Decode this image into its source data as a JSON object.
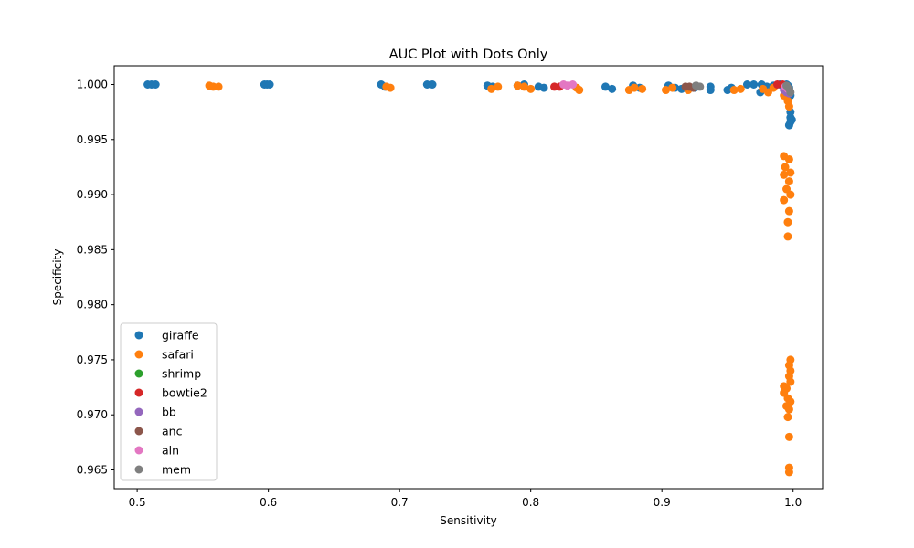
{
  "chart_data": {
    "type": "scatter",
    "title": "AUC Plot with Dots Only",
    "xlabel": "Sensitivity",
    "ylabel": "Specificity",
    "xlim": [
      0.4825,
      1.0225
    ],
    "ylim": [
      0.9633,
      1.0017
    ],
    "x_ticks": [
      "0.5",
      "0.6",
      "0.7",
      "0.8",
      "0.9",
      "1.0"
    ],
    "y_ticks": [
      "0.965",
      "0.970",
      "0.975",
      "0.980",
      "0.985",
      "0.990",
      "0.995",
      "1.000"
    ],
    "legend_position": "lower-left",
    "series": [
      {
        "name": "giraffe",
        "color": "#1f77b4",
        "points": [
          [
            0.508,
            1.0
          ],
          [
            0.511,
            1.0
          ],
          [
            0.514,
            1.0
          ],
          [
            0.597,
            1.0
          ],
          [
            0.599,
            1.0
          ],
          [
            0.601,
            1.0
          ],
          [
            0.686,
            1.0
          ],
          [
            0.689,
            0.9998
          ],
          [
            0.721,
            1.0
          ],
          [
            0.725,
            1.0
          ],
          [
            0.767,
            0.9999
          ],
          [
            0.771,
            0.9998
          ],
          [
            0.79,
            0.9999
          ],
          [
            0.795,
            1.0
          ],
          [
            0.806,
            0.9998
          ],
          [
            0.81,
            0.9997
          ],
          [
            0.857,
            0.9998
          ],
          [
            0.862,
            0.9996
          ],
          [
            0.878,
            0.9999
          ],
          [
            0.883,
            0.9997
          ],
          [
            0.905,
            0.9999
          ],
          [
            0.91,
            0.9997
          ],
          [
            0.915,
            0.9996
          ],
          [
            0.925,
            0.9997
          ],
          [
            0.937,
            0.9998
          ],
          [
            0.937,
            0.9995
          ],
          [
            0.95,
            0.9995
          ],
          [
            0.953,
            0.9997
          ],
          [
            0.965,
            1.0
          ],
          [
            0.97,
            1.0
          ],
          [
            0.976,
            1.0
          ],
          [
            0.975,
            0.9993
          ],
          [
            0.98,
            0.9998
          ],
          [
            0.985,
            0.9999
          ],
          [
            0.99,
            1.0
          ],
          [
            0.995,
            1.0
          ],
          [
            0.996,
            0.9999
          ],
          [
            0.997,
            0.9997
          ],
          [
            0.998,
            0.999
          ],
          [
            0.998,
            0.9975
          ],
          [
            0.998,
            0.997
          ],
          [
            0.998,
            0.9966
          ],
          [
            0.997,
            0.9963
          ],
          [
            0.999,
            0.9968
          ]
        ]
      },
      {
        "name": "safari",
        "color": "#ff7f0e",
        "points": [
          [
            0.555,
            0.9999
          ],
          [
            0.558,
            0.9998
          ],
          [
            0.562,
            0.9998
          ],
          [
            0.69,
            0.9998
          ],
          [
            0.693,
            0.9997
          ],
          [
            0.77,
            0.9996
          ],
          [
            0.775,
            0.9998
          ],
          [
            0.79,
            0.9999
          ],
          [
            0.795,
            0.9998
          ],
          [
            0.8,
            0.9996
          ],
          [
            0.835,
            0.9997
          ],
          [
            0.837,
            0.9995
          ],
          [
            0.875,
            0.9995
          ],
          [
            0.879,
            0.9997
          ],
          [
            0.885,
            0.9996
          ],
          [
            0.903,
            0.9995
          ],
          [
            0.908,
            0.9997
          ],
          [
            0.92,
            0.9995
          ],
          [
            0.955,
            0.9995
          ],
          [
            0.96,
            0.9996
          ],
          [
            0.977,
            0.9996
          ],
          [
            0.981,
            0.9993
          ],
          [
            0.985,
            0.9997
          ],
          [
            0.993,
            0.999
          ],
          [
            0.996,
            0.9985
          ],
          [
            0.997,
            0.998
          ],
          [
            0.993,
            0.9935
          ],
          [
            0.997,
            0.9932
          ],
          [
            0.994,
            0.9925
          ],
          [
            0.998,
            0.992
          ],
          [
            0.993,
            0.9918
          ],
          [
            0.997,
            0.9912
          ],
          [
            0.995,
            0.9905
          ],
          [
            0.998,
            0.99
          ],
          [
            0.993,
            0.9895
          ],
          [
            0.997,
            0.9885
          ],
          [
            0.996,
            0.9875
          ],
          [
            0.996,
            0.9862
          ],
          [
            0.998,
            0.975
          ],
          [
            0.997,
            0.9745
          ],
          [
            0.998,
            0.974
          ],
          [
            0.997,
            0.9735
          ],
          [
            0.998,
            0.973
          ],
          [
            0.993,
            0.9726
          ],
          [
            0.995,
            0.9724
          ],
          [
            0.993,
            0.972
          ],
          [
            0.996,
            0.9715
          ],
          [
            0.998,
            0.9712
          ],
          [
            0.995,
            0.9708
          ],
          [
            0.997,
            0.9705
          ],
          [
            0.996,
            0.9698
          ],
          [
            0.997,
            0.968
          ],
          [
            0.997,
            0.9652
          ],
          [
            0.997,
            0.9648
          ]
        ]
      },
      {
        "name": "shrimp",
        "color": "#2ca02c",
        "points": []
      },
      {
        "name": "bowtie2",
        "color": "#d62728",
        "points": [
          [
            0.818,
            0.9998
          ],
          [
            0.822,
            0.9998
          ],
          [
            0.988,
            1.0
          ],
          [
            0.992,
            1.0
          ],
          [
            0.995,
            0.9998
          ]
        ]
      },
      {
        "name": "bb",
        "color": "#9467bd",
        "points": [
          [
            0.993,
            0.9995
          ],
          [
            0.995,
            0.9993
          ],
          [
            0.997,
            0.9992
          ]
        ]
      },
      {
        "name": "anc",
        "color": "#8c564b",
        "points": [
          [
            0.918,
            0.9998
          ],
          [
            0.921,
            0.9998
          ],
          [
            0.924,
            0.9997
          ]
        ]
      },
      {
        "name": "aln",
        "color": "#e377c2",
        "points": [
          [
            0.825,
            1.0
          ],
          [
            0.828,
            0.9999
          ],
          [
            0.832,
            1.0
          ],
          [
            0.994,
            0.9998
          ],
          [
            0.996,
            0.9996
          ]
        ]
      },
      {
        "name": "mem",
        "color": "#7f7f7f",
        "points": [
          [
            0.926,
            0.9999
          ],
          [
            0.929,
            0.9998
          ],
          [
            0.995,
            0.9999
          ],
          [
            0.997,
            0.9996
          ],
          [
            0.998,
            0.9993
          ]
        ]
      }
    ]
  }
}
